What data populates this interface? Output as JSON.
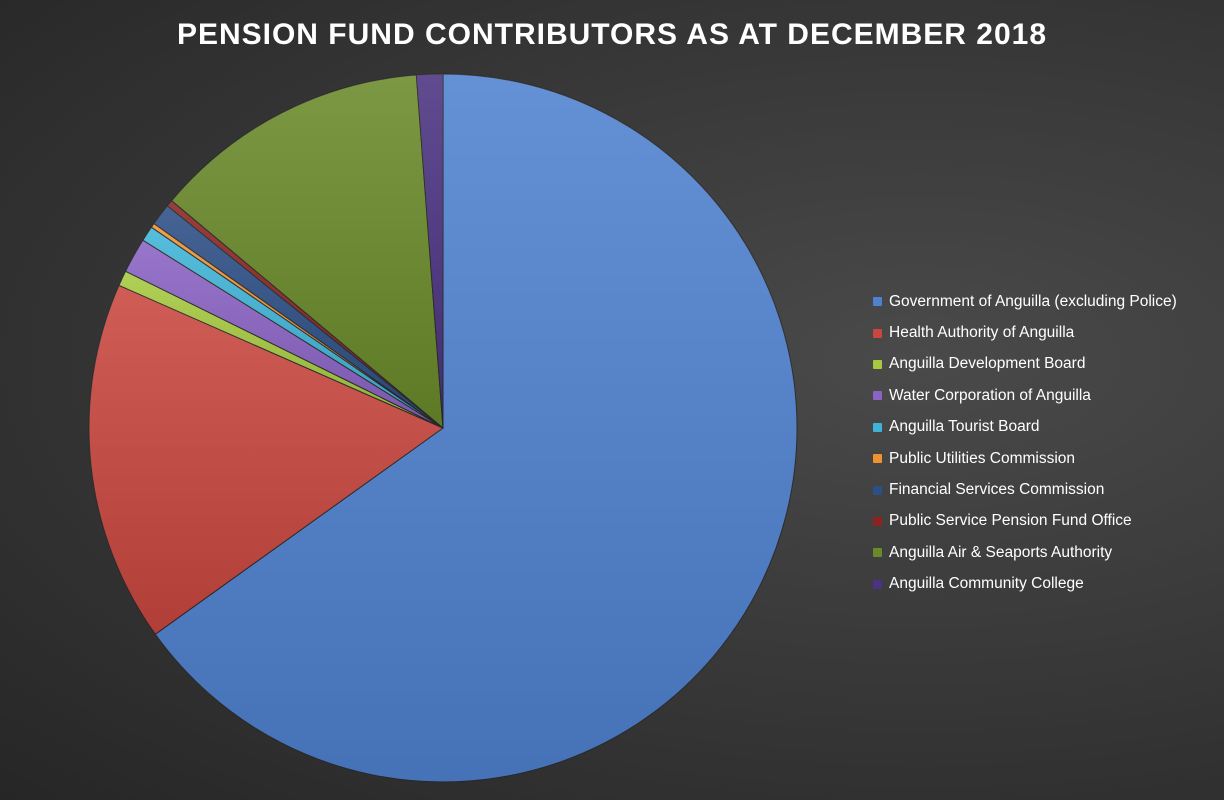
{
  "chart_data": {
    "type": "pie",
    "title": "PENSION FUND CONTRIBUTORS AS AT DECEMBER 2018",
    "legend_position": "right",
    "categories": [
      "Government of Anguilla (excluding Police)",
      "Health Authority of Anguilla",
      "Anguilla Development Board",
      "Water Corporation of Anguilla",
      "Anguilla Tourist Board",
      "Public Utilities Commission",
      "Financial Services Commission",
      "Public Service Pension Fund Office",
      "Anguilla Air & Seaports Authority",
      "Anguilla Community College"
    ],
    "values": [
      65.1,
      16.5,
      0.7,
      1.6,
      0.7,
      0.2,
      1.0,
      0.3,
      12.7,
      1.2
    ],
    "colors": [
      "#4f81d0",
      "#c9473f",
      "#a6c93f",
      "#8a63c4",
      "#3fb4d8",
      "#ee9232",
      "#2c4f86",
      "#8b2420",
      "#6a8a2a",
      "#4b3381"
    ]
  }
}
